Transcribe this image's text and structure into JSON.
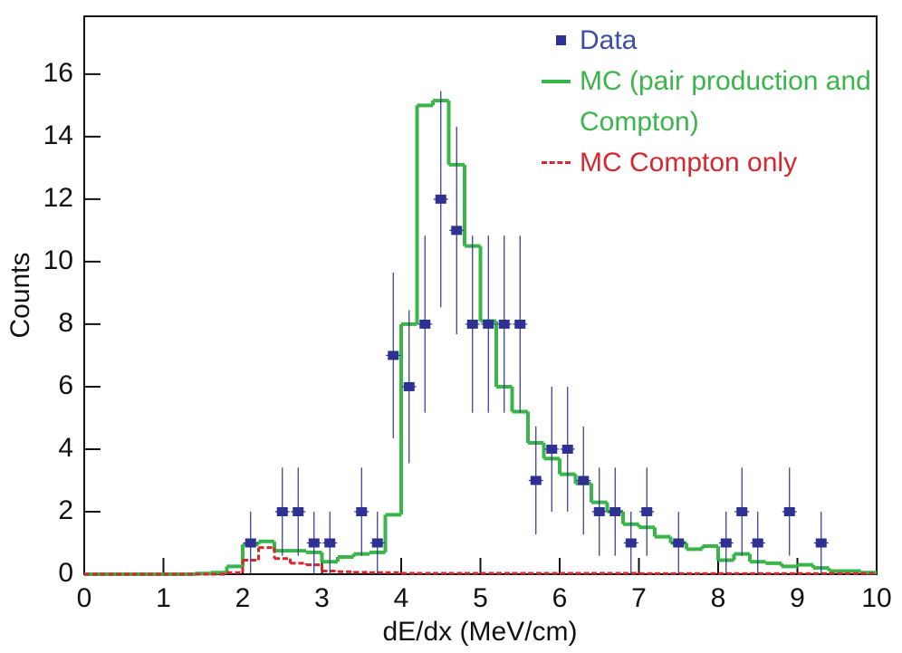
{
  "chart_data": {
    "type": "histogram",
    "x_label": "dE/dx (MeV/cm)",
    "y_label": "Counts",
    "xlim": [
      0,
      10
    ],
    "ylim": [
      0,
      17.85
    ],
    "xticks": [
      0,
      1,
      2,
      3,
      4,
      5,
      6,
      7,
      8,
      9,
      10
    ],
    "yticks": [
      0,
      2,
      4,
      6,
      8,
      10,
      12,
      14,
      16
    ],
    "bins": [
      0,
      0.2,
      0.4,
      0.6,
      0.8,
      1,
      1.2,
      1.4,
      1.6,
      1.8,
      2,
      2.2,
      2.4,
      2.6,
      2.8,
      3,
      3.2,
      3.4,
      3.6,
      3.8,
      4,
      4.2,
      4.4,
      4.6,
      4.8,
      5,
      5.2,
      5.4,
      5.6,
      5.8,
      6,
      6.2,
      6.4,
      6.6,
      6.8,
      7,
      7.2,
      7.4,
      7.6,
      7.8,
      8,
      8.2,
      8.4,
      8.6,
      8.8,
      9,
      9.2,
      9.4,
      9.6,
      9.8,
      10
    ],
    "series": [
      {
        "name": "MC (pair production and Compton)",
        "color": "#3ab54a",
        "dash": false,
        "values": [
          0,
          0,
          0,
          0,
          0,
          0,
          0,
          0.02,
          0.05,
          0.25,
          0.95,
          1.05,
          0.75,
          0.75,
          0.7,
          0.4,
          0.55,
          0.65,
          0.7,
          1.9,
          8.0,
          15.0,
          15.15,
          13.1,
          10.5,
          8.1,
          6.0,
          5.2,
          4.2,
          3.7,
          3.2,
          2.9,
          2.3,
          2.0,
          1.6,
          1.5,
          1.2,
          1.0,
          0.8,
          0.9,
          0.45,
          0.65,
          0.4,
          0.35,
          0.25,
          0.3,
          0.2,
          0.1,
          0.1,
          0.05
        ]
      },
      {
        "name": "MC Compton only",
        "color": "#d7262e",
        "dash": true,
        "values": [
          0,
          0,
          0,
          0,
          0,
          0,
          0,
          0,
          0,
          0.05,
          0.45,
          0.85,
          0.5,
          0.35,
          0.3,
          0.1,
          0.08,
          0.06,
          0.05,
          0.05,
          0.03,
          0.03,
          0.03,
          0.03,
          0.03,
          0.03,
          0.03,
          0.03,
          0.03,
          0.03,
          0.03,
          0.03,
          0.03,
          0.03,
          0.03,
          0.02,
          0.02,
          0.02,
          0.02,
          0.02,
          0.02,
          0.02,
          0.02,
          0.02,
          0.02,
          0.02,
          0.02,
          0.02,
          0.02,
          0.02
        ]
      }
    ],
    "points": {
      "name": "Data",
      "color": "#2e3192",
      "x": [
        2.1,
        2.5,
        2.7,
        2.9,
        3.1,
        3.5,
        3.7,
        3.9,
        4.1,
        4.3,
        4.5,
        4.7,
        4.9,
        5.1,
        5.3,
        5.5,
        5.7,
        5.9,
        6.1,
        6.3,
        6.5,
        6.7,
        6.9,
        7.1,
        7.5,
        8.1,
        8.3,
        8.5,
        8.9,
        9.3
      ],
      "values": [
        1,
        2,
        2,
        1,
        1,
        2,
        1,
        7,
        6,
        8,
        12,
        11,
        8,
        8,
        8,
        8,
        3,
        4,
        4,
        3,
        2,
        2,
        1,
        2,
        1,
        1,
        2,
        1,
        2,
        1
      ],
      "errors": [
        1,
        1.41,
        1.41,
        1,
        1,
        1.41,
        1,
        2.65,
        2.45,
        2.83,
        3.46,
        3.32,
        2.83,
        2.83,
        2.83,
        2.83,
        1.73,
        2,
        2,
        1.73,
        1.41,
        1.41,
        1,
        1.41,
        1,
        1,
        1.41,
        1,
        1.41,
        1
      ]
    }
  }
}
